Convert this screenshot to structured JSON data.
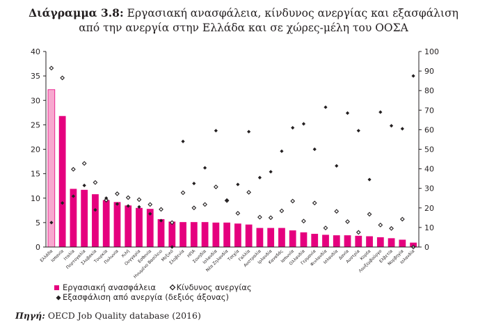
{
  "title": {
    "label": "Διάγραμμα 3.8:",
    "line1": "Εργασιακή ανασφάλεια, κίνδυνος ανεργίας και εξασφάλιση",
    "line2": "από την ανεργία στην Ελλάδα και σε χώρες-μέλη του ΟΟΣΑ"
  },
  "source": {
    "label": "Πηγή:",
    "text": "OECD Job Quality database (2016)"
  },
  "colors": {
    "bar": "#e5007e",
    "bar_highlight": "#f7a8cf",
    "bar_highlight_edge": "#e5007e",
    "marker": "#231f20",
    "axis": "#231f20"
  },
  "chart_data": {
    "type": "bar",
    "categories": [
      "Ελλάδα",
      "Ισπανία",
      "Ιταλία",
      "Πορτογαλία",
      "Σλοβακία",
      "Τουρκία",
      "Πολωνία",
      "Χιλή",
      "Ουγγαρία",
      "Εσθονία",
      "Ηνωμένο Βασίλειο",
      "Μεξικό",
      "Σλοβενία",
      "ΗΠΑ",
      "Σουηδία",
      "Ισλανδία",
      "Νέα Ζηλανδία",
      "Τσεχία",
      "Γαλλία",
      "Αυστραλία",
      "Ιρλανδία",
      "Καναδάς",
      "Ιαπωνία",
      "Ολλανδία",
      "Γερμανία",
      "Φινλανδία",
      "Ισλανδία",
      "Δανία",
      "Αυστρία",
      "Κορέα",
      "Λουξεμβούργο",
      "Ελβετία",
      "Νορβηγία",
      "Ισλανδία"
    ],
    "y_ticks_left": [
      "0",
      "5",
      "10",
      "15",
      "20",
      "25",
      "30",
      "35",
      "40"
    ],
    "y_ticks_right": [
      "0",
      "10",
      "20",
      "30",
      "40",
      "50",
      "60",
      "70",
      "80",
      "90",
      "100"
    ],
    "ylim_left": [
      0,
      40
    ],
    "ylim_right": [
      0,
      100
    ],
    "highlight_index": 0,
    "series": [
      {
        "name": "Εργασιακή ανασφάλεια",
        "type": "bar",
        "axis": "left",
        "values": [
          32.2,
          26.8,
          11.9,
          11.7,
          10.8,
          9.6,
          9.2,
          8.5,
          8.0,
          7.8,
          5.7,
          5.2,
          5.1,
          5.1,
          5.1,
          5.0,
          5.0,
          4.8,
          4.6,
          3.9,
          3.9,
          3.9,
          3.4,
          3.0,
          2.7,
          2.5,
          2.4,
          2.4,
          2.3,
          2.2,
          2.0,
          1.8,
          1.5,
          0.9
        ]
      },
      {
        "name": "Κίνδυνος ανεργίας",
        "type": "scatter",
        "marker": "diamond-open",
        "axis": "left",
        "values": [
          36.6,
          34.6,
          15.9,
          17.1,
          13.2,
          9.6,
          10.9,
          10.1,
          9.7,
          8.7,
          7.7,
          5.0,
          11.1,
          8.0,
          8.7,
          12.3,
          9.5,
          6.9,
          11.2,
          6.1,
          6.0,
          7.4,
          9.4,
          5.3,
          9.0,
          3.9,
          7.3,
          5.2,
          3.0,
          6.7,
          4.5,
          3.8,
          5.7,
          0
        ]
      },
      {
        "name": "Εξασφάλιση από ανεργία (δεξιός άξονας)",
        "type": "scatter",
        "marker": "diamond-filled",
        "axis": "right",
        "values": [
          12.5,
          22.5,
          26,
          31.5,
          19,
          25,
          22,
          21,
          20.5,
          17,
          13.5,
          0,
          54,
          32.5,
          40.5,
          59.5,
          24,
          32,
          59,
          35.5,
          38.5,
          49,
          61,
          63,
          50,
          71.5,
          41.5,
          68.5,
          59.5,
          34.5,
          69,
          62,
          60.5,
          87.5
        ]
      }
    ]
  },
  "legend": [
    {
      "label": "Εργασιακή ανασφάλεια",
      "symbol": "square"
    },
    {
      "label": "Κίνδυνος ανεργίας",
      "symbol": "diamond-open"
    },
    {
      "label": "Εξασφάλιση από ανεργία (δεξιός άξονας)",
      "symbol": "diamond-filled"
    }
  ]
}
